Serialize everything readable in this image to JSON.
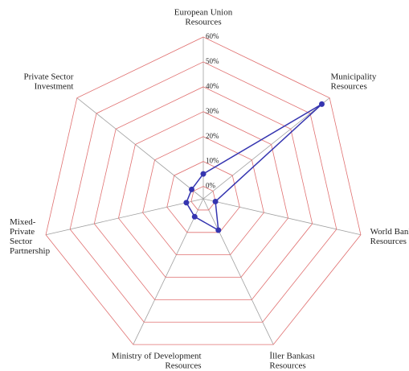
{
  "chart_data": {
    "type": "radar",
    "categories": [
      [
        "European Union",
        "Resources"
      ],
      [
        "Municipality",
        "Resources"
      ],
      [
        "World Bank",
        "Resources"
      ],
      [
        "İller Bankası",
        "Resources"
      ],
      [
        "Ministry of Development",
        "Resources"
      ],
      [
        "Mixed-",
        "Private",
        "Sector",
        "Partnership"
      ],
      [
        "Private Sector",
        "Investment"
      ]
    ],
    "series": [
      {
        "color": "#3535b0",
        "values": [
          5,
          56,
          0,
          9,
          3,
          2,
          1
        ]
      }
    ],
    "ylim": [
      -5,
      60
    ],
    "yticks": [
      {
        "value": 0,
        "label": "0%"
      },
      {
        "value": 10,
        "label": "10%"
      },
      {
        "value": 20,
        "label": "20%"
      },
      {
        "value": 30,
        "label": "30%"
      },
      {
        "value": 40,
        "label": "40%"
      },
      {
        "value": 50,
        "label": "50%"
      },
      {
        "value": 60,
        "label": "60%"
      }
    ],
    "grid_color": "#e07070",
    "spoke_color": "#a0a0a0"
  }
}
